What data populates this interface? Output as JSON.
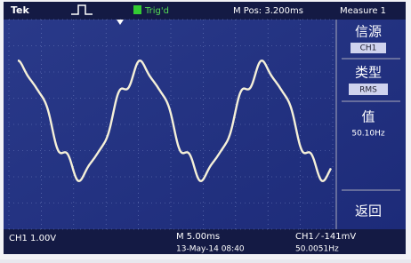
{
  "top_bar": {
    "brand": "Tek",
    "trigger_status": "Trig'd",
    "position": "M Pos: 3.200ms",
    "menu_title": "Measure 1"
  },
  "menu": {
    "items": [
      {
        "label": "信源",
        "setting": "CH1"
      },
      {
        "label": "类型",
        "setting": "RMS"
      },
      {
        "label": "值",
        "setting": "50.10Hz"
      },
      {
        "label": "返回"
      }
    ]
  },
  "bottom_bar": {
    "channel_scale": "CH1 1.00V",
    "time_scale": "M 5.00ms",
    "date": "13-May-14 08:40",
    "trigger": "CH1 ⁄ -141mV",
    "frequency": "50.0051Hz"
  }
}
